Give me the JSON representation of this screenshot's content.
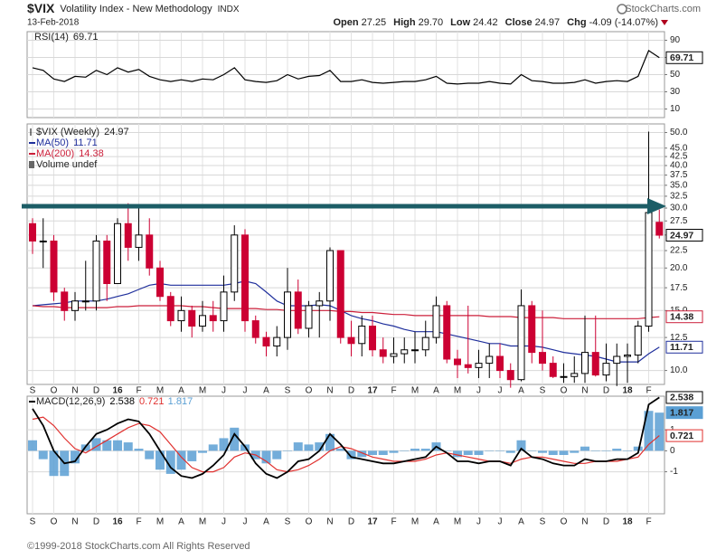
{
  "header": {
    "symbol": "$VIX",
    "name": "Volatility Index - New Methodology",
    "exchange": "INDX",
    "date": "13-Feb-2018",
    "brand": "StockCharts.com",
    "quote": [
      {
        "label": "Open",
        "value": "27.25"
      },
      {
        "label": "High",
        "value": "29.70"
      },
      {
        "label": "Low",
        "value": "24.42"
      },
      {
        "label": "Close",
        "value": "24.97"
      },
      {
        "label": "Chg",
        "value": "-4.09 (-14.07%)"
      }
    ]
  },
  "footer": "©1999-2018 StockCharts.com All Rights Reserved",
  "chart_data": [
    {
      "type": "line",
      "series": [
        {
          "name": "RSI(14)",
          "color": "#000000",
          "values": [
            58,
            55,
            45,
            42,
            48,
            47,
            55,
            50,
            58,
            53,
            56,
            48,
            44,
            42,
            44,
            42,
            45,
            44,
            50,
            58,
            44,
            42,
            41,
            43,
            50,
            45,
            48,
            49,
            55,
            42,
            42,
            44,
            41,
            40,
            41,
            42,
            42,
            44,
            48,
            40,
            39,
            40,
            40,
            42,
            40,
            39,
            50,
            43,
            42,
            40,
            40,
            41,
            44,
            40,
            42,
            43,
            42,
            48,
            78,
            69.71
          ]
        }
      ],
      "ylim": [
        0,
        100
      ],
      "yticks": [
        90,
        70,
        50,
        30,
        10
      ],
      "grid": true
    },
    {
      "type": "candlestick",
      "categories": [
        "S",
        null,
        "O",
        null,
        "N",
        null,
        "D",
        null,
        "16",
        null,
        "F",
        null,
        "M",
        null,
        "A",
        null,
        "M",
        null,
        "J",
        null,
        "J",
        null,
        "A",
        null,
        "S",
        null,
        "O",
        null,
        "N",
        null,
        "D",
        null,
        "17",
        null,
        "F",
        null,
        "M",
        null,
        "A",
        null,
        "M",
        null,
        "J",
        null,
        "J",
        null,
        "A",
        null,
        "S",
        null,
        "O",
        null,
        "N",
        null,
        "D",
        null,
        "18",
        null,
        "F",
        null
      ],
      "series": [
        {
          "name": "$VIX (Weekly)",
          "up_color": "#000000",
          "down_color": "#cc0033",
          "open": [
            27,
            24,
            24,
            17,
            15,
            16,
            16,
            24,
            18,
            27,
            23,
            25,
            20,
            16.5,
            14,
            15,
            13.5,
            14.5,
            14,
            17,
            25,
            14,
            12.5,
            11.8,
            12.5,
            17,
            13.3,
            15.5,
            16,
            22.5,
            12.5,
            12,
            13.5,
            11.5,
            11,
            11.2,
            11.5,
            11.5,
            12.5,
            15.5,
            10.8,
            10.4,
            10.2,
            10.5,
            11,
            10,
            9.4,
            15.5,
            11.3,
            10.5,
            9.6,
            9.6,
            9.8,
            11.3,
            9.7,
            10.5,
            11,
            11.1,
            13.5,
            27.25
          ],
          "high": [
            28,
            28,
            25,
            17.5,
            17,
            21,
            25,
            25,
            28,
            31,
            30,
            28,
            21,
            17,
            16.5,
            15.5,
            16,
            16,
            19,
            26.7,
            26,
            14.5,
            13,
            13.5,
            20,
            18.5,
            16,
            17,
            23,
            22.5,
            14,
            14.5,
            14.5,
            12.5,
            12.5,
            12.5,
            13,
            14,
            16.5,
            16,
            11.5,
            15.5,
            11.5,
            12,
            12,
            10.5,
            17.3,
            16,
            15,
            11,
            10.5,
            11,
            14.5,
            14.5,
            12,
            12,
            12,
            14,
            50.3,
            29.7
          ],
          "low": [
            22,
            20,
            16,
            14,
            14,
            15,
            15,
            16,
            18,
            21,
            21,
            19,
            16,
            13.5,
            13,
            12.5,
            13,
            13,
            13,
            16,
            13,
            12,
            11,
            11,
            11.5,
            12.8,
            12.5,
            12.5,
            14,
            12,
            11,
            11,
            11,
            10.5,
            10.5,
            10.5,
            10.5,
            11,
            12,
            10.5,
            9.5,
            9.8,
            9.5,
            9.5,
            9.5,
            8.9,
            9.3,
            10.5,
            10,
            9.5,
            9.2,
            9.2,
            9.2,
            9.6,
            9.3,
            9,
            9.2,
            10.5,
            13,
            24.42
          ],
          "close": [
            24,
            24,
            17,
            15,
            16,
            16,
            24,
            18,
            27,
            23,
            25,
            20,
            16.5,
            14,
            15,
            13.5,
            14.5,
            14,
            17,
            25,
            14,
            12.5,
            11.8,
            12.5,
            17,
            13.3,
            15.5,
            16,
            22.5,
            12.5,
            12,
            13.5,
            11.5,
            11,
            11.2,
            11.5,
            11.5,
            12.5,
            15.5,
            10.8,
            10.4,
            10.2,
            10.5,
            11,
            10,
            9.4,
            15.5,
            11.3,
            10.5,
            9.6,
            9.6,
            9.8,
            11.3,
            9.7,
            10.5,
            11,
            11.1,
            13.5,
            29.1,
            24.97
          ]
        },
        {
          "name": "MA(50)",
          "color": "#1f2f9c",
          "values": [
            15.5,
            15.6,
            15.7,
            15.8,
            16,
            16,
            16,
            16.2,
            16.5,
            16.8,
            17.3,
            17.8,
            18,
            17.8,
            17.8,
            17.8,
            17.8,
            17.8,
            17.8,
            18,
            18.3,
            18,
            17,
            16,
            15.5,
            15.5,
            15.5,
            15.6,
            15.5,
            15,
            14.5,
            14.2,
            14,
            13.7,
            13.5,
            13.2,
            13,
            13,
            13,
            12.8,
            12.6,
            12.4,
            12.2,
            12,
            12,
            11.8,
            11.8,
            11.8,
            11.7,
            11.5,
            11.3,
            11.2,
            11.1,
            11,
            10.8,
            10.6,
            10.6,
            10.6,
            11.2,
            11.71
          ]
        },
        {
          "name": "MA(200)",
          "color": "#cc1f3a",
          "values": [
            15.5,
            15.4,
            15.4,
            15.3,
            15.3,
            15.3,
            15.3,
            15.3,
            15.4,
            15.4,
            15.5,
            15.5,
            15.5,
            15.5,
            15.5,
            15.4,
            15.4,
            15.3,
            15.2,
            15.2,
            15.2,
            15.2,
            15.1,
            15.1,
            15,
            15,
            15,
            15,
            15,
            14.9,
            14.9,
            14.8,
            14.8,
            14.7,
            14.6,
            14.6,
            14.5,
            14.5,
            14.5,
            14.5,
            14.5,
            14.5,
            14.5,
            14.4,
            14.4,
            14.4,
            14.3,
            14.3,
            14.3,
            14.3,
            14.2,
            14.2,
            14.2,
            14.2,
            14.2,
            14.2,
            14.2,
            14.2,
            14.3,
            14.38
          ]
        }
      ],
      "volume_label": "Volume undef",
      "log_scale": true,
      "ylim": [
        9.1,
        53
      ],
      "yticks": [
        {
          "value": 50,
          "label": "50.0"
        },
        {
          "value": 45,
          "label": "45.0"
        },
        {
          "value": 42.5,
          "label": "42.5"
        },
        {
          "value": 40,
          "label": "40.0"
        },
        {
          "value": 37.5,
          "label": "37.5"
        },
        {
          "value": 35,
          "label": "35.0"
        },
        {
          "value": 32.5,
          "label": "32.5"
        },
        {
          "value": 30,
          "label": "30.0"
        },
        {
          "value": 27.5,
          "label": "27.5"
        },
        {
          "value": 25,
          "label": "25.0"
        },
        {
          "value": 22.5,
          "label": "22.5"
        },
        {
          "value": 20,
          "label": "20.0"
        },
        {
          "value": 17.5,
          "label": "17.5"
        },
        {
          "value": 15,
          "label": "15.0"
        },
        {
          "value": 12.5,
          "label": "12.5"
        },
        {
          "value": 10,
          "label": "10.0"
        }
      ],
      "grid": true
    },
    {
      "type": "macd",
      "title": "MACD(12,26,9)",
      "categories": [
        "S",
        null,
        "O",
        null,
        "N",
        null,
        "D",
        null,
        "16",
        null,
        "F",
        null,
        "M",
        null,
        "A",
        null,
        "M",
        null,
        "J",
        null,
        "J",
        null,
        "A",
        null,
        "S",
        null,
        "O",
        null,
        "N",
        null,
        "D",
        null,
        "17",
        null,
        "F",
        null,
        "M",
        null,
        "A",
        null,
        "M",
        null,
        "J",
        null,
        "J",
        null,
        "A",
        null,
        "S",
        null,
        "O",
        null,
        "N",
        null,
        "D",
        null,
        "18",
        null,
        "F",
        null
      ],
      "series": [
        {
          "color": "#000000",
          "values": [
            2.0,
            1.2,
            0,
            -0.6,
            -0.5,
            0.2,
            0.8,
            1.0,
            1.3,
            1.5,
            1.4,
            0.8,
            0,
            -0.8,
            -1.2,
            -1.3,
            -1.1,
            -0.7,
            -0.2,
            0.8,
            0.2,
            -0.6,
            -1.1,
            -1.3,
            -1.0,
            -0.5,
            -0.4,
            0,
            0.8,
            0.3,
            -0.3,
            -0.4,
            -0.5,
            -0.6,
            -0.6,
            -0.5,
            -0.4,
            -0.3,
            0.2,
            -0.1,
            -0.5,
            -0.5,
            -0.6,
            -0.5,
            -0.5,
            -0.7,
            0.1,
            -0.3,
            -0.4,
            -0.6,
            -0.7,
            -0.7,
            -0.4,
            -0.5,
            -0.5,
            -0.4,
            -0.4,
            -0.1,
            2.2,
            2.538
          ]
        },
        {
          "color": "#e0312f",
          "values": [
            1.5,
            1.6,
            1.2,
            0.6,
            0.1,
            -0.1,
            0.2,
            0.5,
            0.8,
            1.1,
            1.3,
            1.2,
            0.9,
            0.3,
            -0.3,
            -0.8,
            -1.0,
            -1.0,
            -0.8,
            -0.3,
            -0.1,
            -0.2,
            -0.5,
            -0.9,
            -1.0,
            -0.9,
            -0.7,
            -0.4,
            0,
            0.2,
            0.1,
            -0.1,
            -0.3,
            -0.4,
            -0.5,
            -0.5,
            -0.5,
            -0.4,
            -0.2,
            -0.1,
            -0.2,
            -0.3,
            -0.4,
            -0.5,
            -0.5,
            -0.6,
            -0.4,
            -0.3,
            -0.3,
            -0.4,
            -0.5,
            -0.6,
            -0.6,
            -0.5,
            -0.5,
            -0.5,
            -0.4,
            -0.3,
            0.3,
            0.721
          ]
        },
        {
          "color": "#5a9fd4",
          "values": [
            0.5,
            -0.4,
            -1.2,
            -1.2,
            -0.6,
            0.3,
            0.6,
            0.5,
            0.5,
            0.4,
            0.1,
            -0.4,
            -0.9,
            -1.1,
            -0.9,
            -0.5,
            -0.1,
            0.3,
            0.6,
            1.1,
            0.3,
            -0.4,
            -0.6,
            -0.4,
            0,
            0.4,
            0.3,
            0.4,
            0.8,
            0.1,
            -0.4,
            -0.3,
            -0.2,
            -0.2,
            -0.1,
            0,
            0.1,
            0.1,
            0.4,
            0,
            -0.3,
            -0.2,
            -0.2,
            0,
            0,
            -0.1,
            0.5,
            0,
            -0.1,
            -0.2,
            -0.2,
            -0.1,
            0.2,
            0,
            0,
            0.1,
            0,
            0.2,
            1.9,
            1.817
          ]
        }
      ],
      "ylim": [
        -3,
        2.6
      ],
      "yticks": [
        1,
        0,
        -1
      ],
      "grid": true
    }
  ]
}
